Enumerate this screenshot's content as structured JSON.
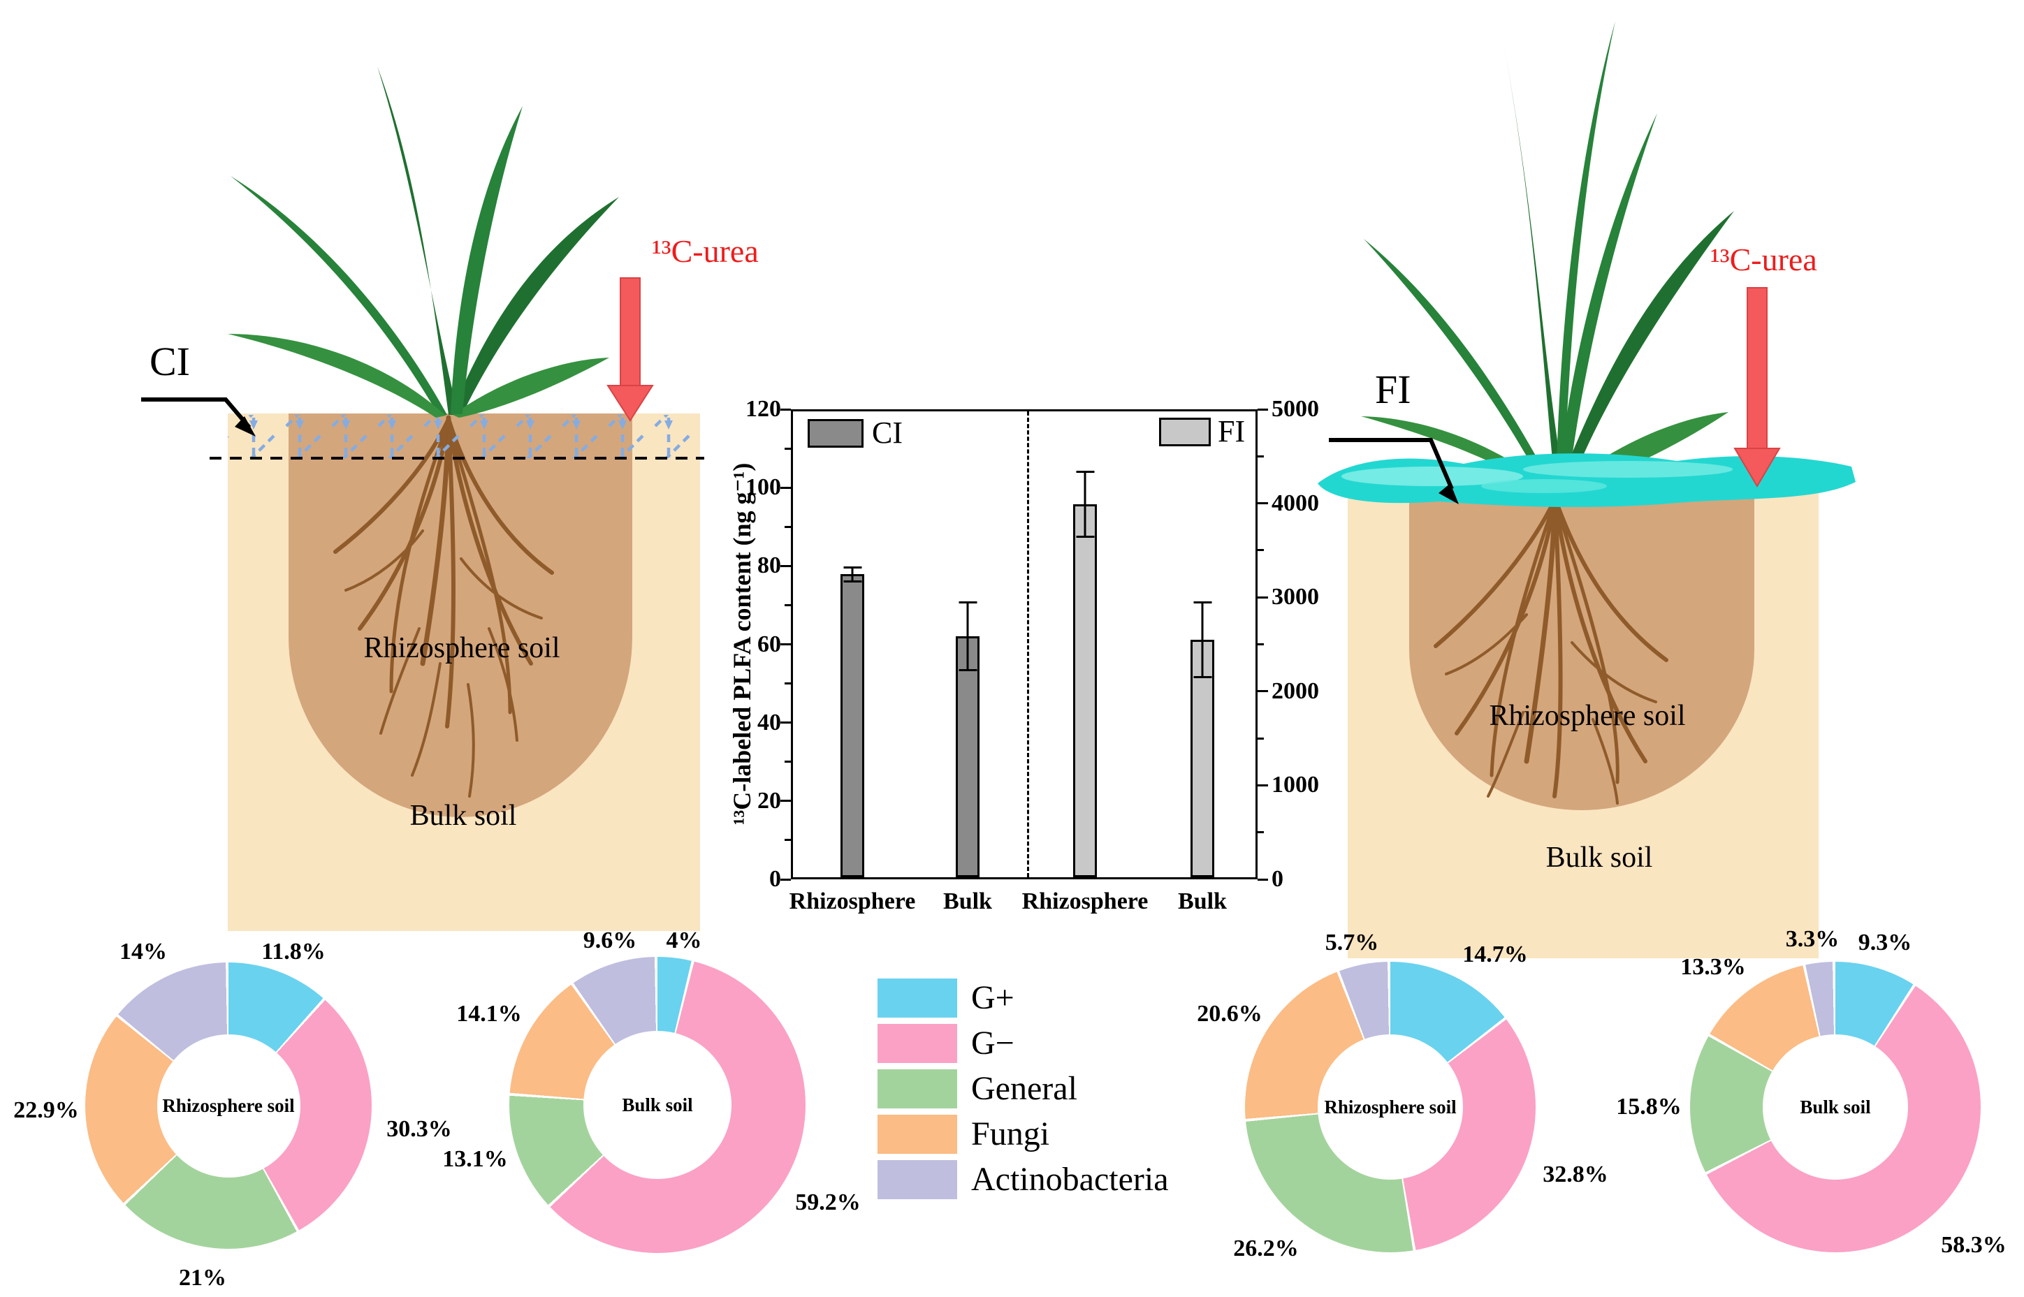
{
  "panels": {
    "ci": {
      "treatment": "CI",
      "urea": "¹³C-urea",
      "rhizosphere": "Rhizosphere soil",
      "bulk": "Bulk soil"
    },
    "fi": {
      "treatment": "FI",
      "urea": "¹³C-urea",
      "rhizosphere": "Rhizosphere soil",
      "bulk": "Bulk soil"
    }
  },
  "legend": {
    "items": [
      {
        "label": "G+",
        "color": "#69D2EF"
      },
      {
        "label": "G−",
        "color": "#FBA1C5"
      },
      {
        "label": "General",
        "color": "#A3D39C"
      },
      {
        "label": "Fungi",
        "color": "#FBBC85"
      },
      {
        "label": "Actinobacteria",
        "color": "#BFBEDF"
      }
    ]
  },
  "colors": {
    "ci_bar": "#8A8A8A",
    "fi_bar": "#C8C8C8",
    "urea_text": "#EE1C1C",
    "arrow_fill": "#F4595B",
    "water": "#23D7D1",
    "bulk_soil": "#FAE5C1",
    "rhizosphere_soil": "#D4A67C",
    "irrigation_lines": "#84ACE2"
  },
  "chart_data": [
    {
      "type": "bar",
      "title": "",
      "ylabel": "¹³C-labeled PLFA content (ng g⁻¹)",
      "categories": [
        "Rhizosphere",
        "Bulk",
        "Rhizosphere",
        "Bulk"
      ],
      "series": [
        {
          "name": "CI",
          "axis": "left",
          "values": [
            78,
            62
          ],
          "errors": [
            2,
            9
          ]
        },
        {
          "name": "FI",
          "axis": "right",
          "values": [
            4000,
            2550
          ],
          "errors": [
            360,
            410
          ]
        }
      ],
      "left_axis": {
        "range": [
          0,
          120
        ],
        "ticks": [
          0,
          20,
          40,
          60,
          80,
          100,
          120
        ]
      },
      "right_axis": {
        "range": [
          0,
          5000
        ],
        "ticks": [
          0,
          1000,
          2000,
          3000,
          4000,
          5000
        ]
      },
      "legend": [
        "CI",
        "FI"
      ],
      "divider": "dashed vertical line between CI and FI groups",
      "grid": false
    },
    {
      "type": "donut",
      "treatment": "CI",
      "title": "Rhizosphere soil",
      "segments": [
        {
          "label": "G+",
          "display": "11.8%",
          "value": 11.8
        },
        {
          "label": "G−",
          "display": "30.3%",
          "value": 30.3
        },
        {
          "label": "General",
          "display": "21%",
          "value": 21
        },
        {
          "label": "Fungi",
          "display": "22.9%",
          "value": 22.9
        },
        {
          "label": "Actinobacteria",
          "display": "14%",
          "value": 14
        }
      ]
    },
    {
      "type": "donut",
      "treatment": "CI",
      "title": "Bulk soil",
      "segments": [
        {
          "label": "G+",
          "display": "4%",
          "value": 4
        },
        {
          "label": "G−",
          "display": "59.2%",
          "value": 59.2
        },
        {
          "label": "General",
          "display": "13.1%",
          "value": 13.1
        },
        {
          "label": "Fungi",
          "display": "14.1%",
          "value": 14.1
        },
        {
          "label": "Actinobacteria",
          "display": "9.6%",
          "value": 9.6
        }
      ]
    },
    {
      "type": "donut",
      "treatment": "FI",
      "title": "Rhizosphere soil",
      "segments": [
        {
          "label": "G+",
          "display": "14.7%",
          "value": 14.7
        },
        {
          "label": "G−",
          "display": "32.8%",
          "value": 32.8
        },
        {
          "label": "General",
          "display": "26.2%",
          "value": 26.2
        },
        {
          "label": "Fungi",
          "display": "20.6%",
          "value": 20.6
        },
        {
          "label": "Actinobacteria",
          "display": "5.7%",
          "value": 5.7
        }
      ]
    },
    {
      "type": "donut",
      "treatment": "FI",
      "title": "Bulk soil",
      "segments": [
        {
          "label": "G+",
          "display": "9.3%",
          "value": 9.3
        },
        {
          "label": "G−",
          "display": "58.3%",
          "value": 58.3
        },
        {
          "label": "General",
          "display": "15.8%",
          "value": 15.8
        },
        {
          "label": "Fungi",
          "display": "13.3%",
          "value": 13.3
        },
        {
          "label": "Actinobacteria",
          "display": "3.3%",
          "value": 3.3
        }
      ]
    }
  ]
}
